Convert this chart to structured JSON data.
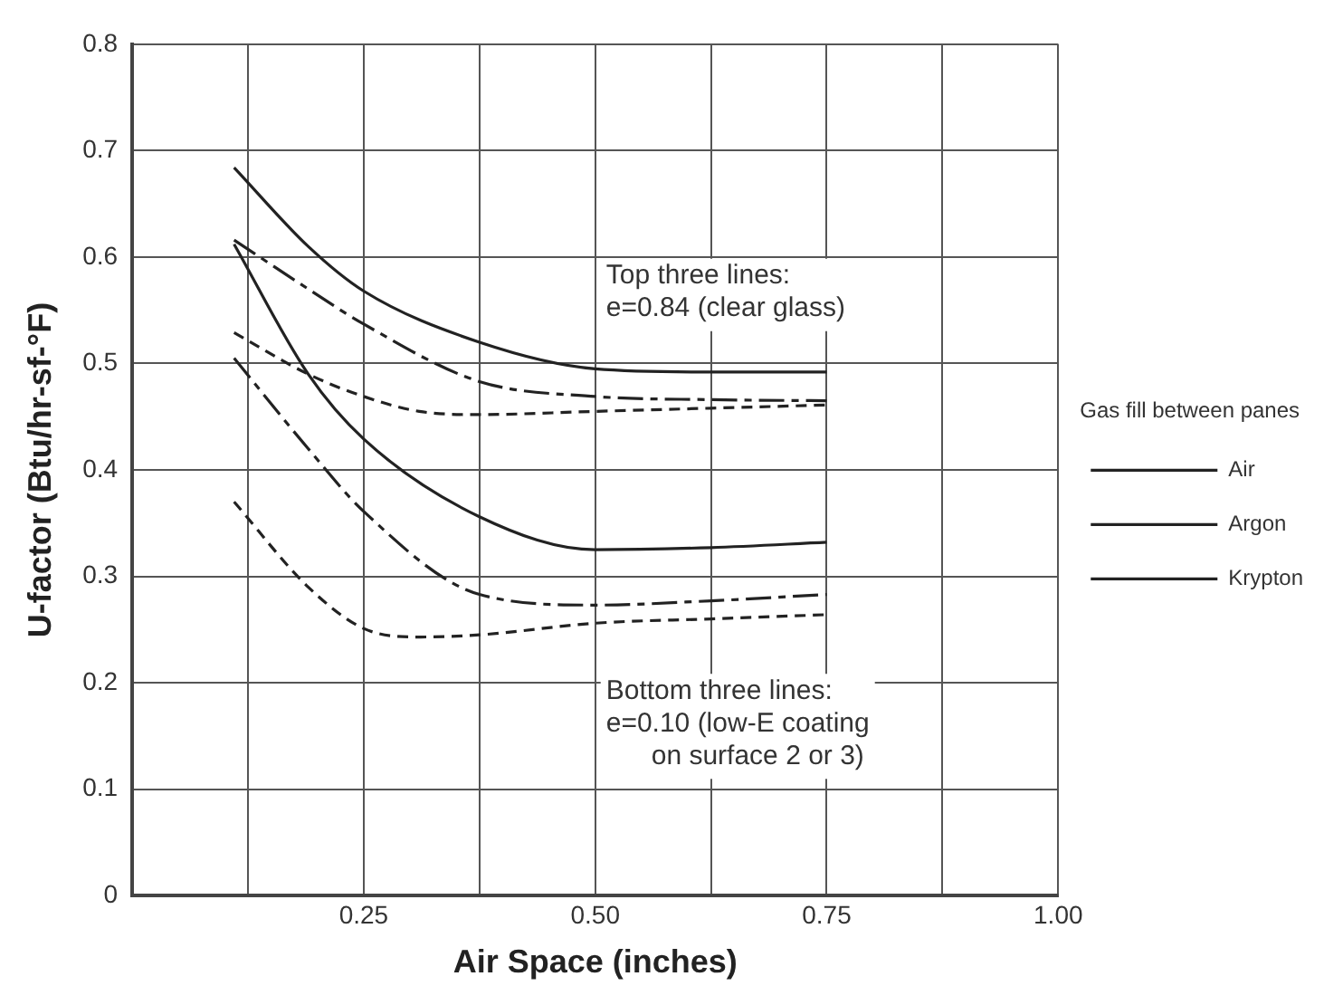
{
  "chart_data": {
    "type": "line",
    "xlabel": "Air Space (inches)",
    "ylabel": "U-factor (Btu/hr-sf-°F)",
    "legend_title": "Gas fill between panes",
    "legend": "right",
    "grid": true,
    "marker": "none",
    "xlim": [
      0,
      1
    ],
    "xticks": [
      {
        "value": 0.125,
        "label": null
      },
      {
        "value": 0.25,
        "label": "0.25"
      },
      {
        "value": 0.375,
        "label": null
      },
      {
        "value": 0.5,
        "label": "0.50"
      },
      {
        "value": 0.625,
        "label": null
      },
      {
        "value": 0.75,
        "label": "0.75"
      },
      {
        "value": 0.875,
        "label": null
      },
      {
        "value": 1,
        "label": "1.00"
      }
    ],
    "ylim": [
      0,
      0.8
    ],
    "yticks": [
      0,
      0.1,
      0.2,
      0.3,
      0.4,
      0.5,
      0.6,
      0.7,
      0.8
    ],
    "annotations": [
      "Top three lines:\ne=0.84 (clear glass)",
      "Bottom three lines:\ne=0.10 (low-E coating\n      on surface 2 or 3)"
    ],
    "series": [
      {
        "name": "Air",
        "color": "#222222",
        "line_style": "solid",
        "x": [
          0.11,
          0.19,
          0.25,
          0.375,
          0.5,
          0.625,
          0.75
        ],
        "values": [
          0.684,
          0.61,
          0.568,
          0.52,
          0.495,
          0.492,
          0.492
        ]
      },
      {
        "name": "Argon",
        "color": "#222222",
        "line_style": "dashed",
        "x": [
          0.11,
          0.19,
          0.25,
          0.375,
          0.5,
          0.625,
          0.75
        ],
        "values": [
          0.616,
          0.57,
          0.537,
          0.483,
          0.469,
          0.466,
          0.465
        ]
      },
      {
        "name": "Krypton",
        "color": "#222222",
        "line_style": "dotted",
        "x": [
          0.11,
          0.19,
          0.25,
          0.31,
          0.375,
          0.5,
          0.625,
          0.75
        ],
        "values": [
          0.529,
          0.49,
          0.469,
          0.455,
          0.452,
          0.455,
          0.458,
          0.461
        ]
      },
      {
        "color": "#222222",
        "line_style": "solid",
        "x": [
          0.11,
          0.19,
          0.25,
          0.375,
          0.5,
          0.625,
          0.75
        ],
        "values": [
          0.612,
          0.49,
          0.429,
          0.356,
          0.325,
          0.327,
          0.332
        ]
      },
      {
        "color": "#222222",
        "line_style": "dashed",
        "x": [
          0.11,
          0.19,
          0.25,
          0.375,
          0.5,
          0.625,
          0.75
        ],
        "values": [
          0.505,
          0.42,
          0.361,
          0.283,
          0.273,
          0.277,
          0.283
        ]
      },
      {
        "color": "#222222",
        "line_style": "dotted",
        "x": [
          0.11,
          0.19,
          0.25,
          0.31,
          0.375,
          0.5,
          0.625,
          0.75
        ],
        "values": [
          0.37,
          0.29,
          0.251,
          0.243,
          0.245,
          0.256,
          0.26,
          0.264
        ]
      }
    ]
  }
}
